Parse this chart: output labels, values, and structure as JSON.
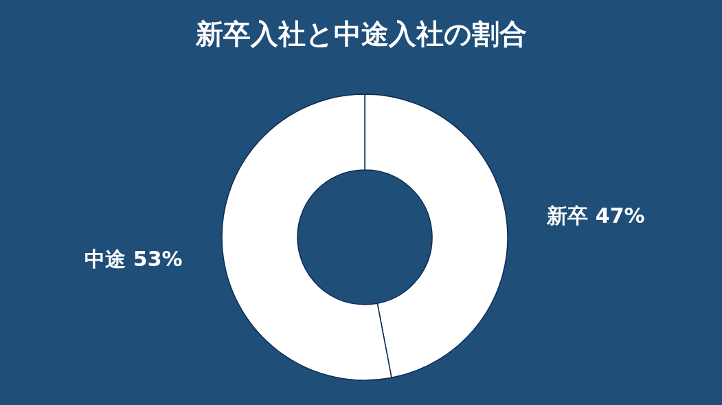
{
  "chart_data": {
    "type": "donut",
    "title": "新卒入社と中途入社の割合",
    "categories": [
      "新卒",
      "中途"
    ],
    "values": [
      47,
      53
    ],
    "value_labels": [
      "47%",
      "53%"
    ],
    "colors": [
      "#ffffff",
      "#ffffff"
    ]
  }
}
